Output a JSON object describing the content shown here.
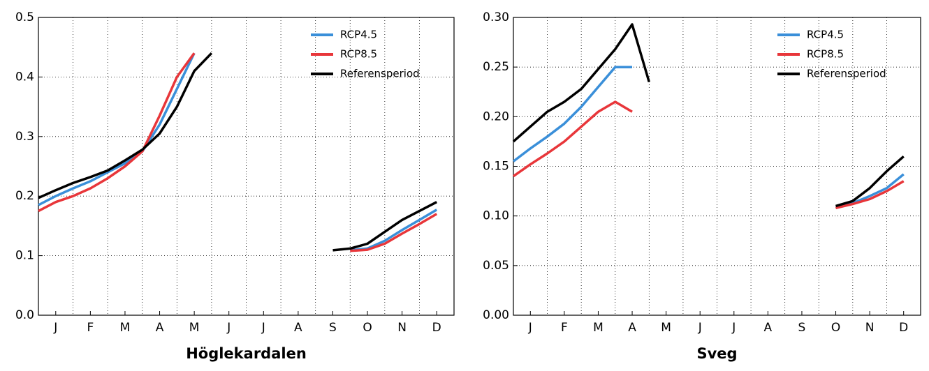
{
  "chart_data": [
    {
      "type": "line",
      "title": "Höglekardalen",
      "categories": [
        null,
        "J",
        null,
        "F",
        null,
        "M",
        null,
        "A",
        null,
        "M",
        null,
        "J",
        null,
        "J",
        null,
        "A",
        null,
        "S",
        null,
        "O",
        null,
        "N",
        null,
        "D"
      ],
      "ylim": [
        0,
        0.5
      ],
      "yticks": [
        {
          "value": 0,
          "label": "0.0"
        },
        0.1,
        0.2,
        0.3,
        0.4,
        0.5
      ],
      "grid": true,
      "legend": "upper right",
      "series": [
        {
          "name": "RCP4.5",
          "color": "#3a8fd9",
          "values": [
            0.185,
            0.2,
            0.213,
            0.225,
            0.24,
            0.255,
            0.275,
            0.32,
            0.38,
            0.44,
            null,
            null,
            null,
            null,
            null,
            null,
            null,
            null,
            0.109,
            0.112,
            0.125,
            0.143,
            0.16,
            0.177
          ]
        },
        {
          "name": "RCP8.5",
          "color": "#e8363a",
          "values": [
            0.175,
            0.19,
            0.2,
            0.213,
            0.23,
            0.25,
            0.275,
            0.335,
            0.4,
            0.44,
            null,
            null,
            null,
            null,
            null,
            null,
            null,
            null,
            0.108,
            0.11,
            0.12,
            0.137,
            0.153,
            0.17
          ]
        },
        {
          "name": "Referensperiod",
          "color": "#000000",
          "values": [
            0.197,
            0.21,
            0.222,
            0.232,
            0.243,
            0.26,
            0.278,
            0.305,
            0.35,
            0.41,
            0.44,
            null,
            null,
            null,
            null,
            null,
            null,
            0.109,
            0.112,
            0.12,
            0.14,
            0.16,
            0.175,
            0.19
          ]
        }
      ]
    },
    {
      "type": "line",
      "title": "Sveg",
      "categories": [
        null,
        "J",
        null,
        "F",
        null,
        "M",
        null,
        "A",
        null,
        "M",
        null,
        "J",
        null,
        "J",
        null,
        "A",
        null,
        "S",
        null,
        "O",
        null,
        "N",
        null,
        "D"
      ],
      "ylim": [
        0,
        0.3
      ],
      "yticks": [
        {
          "value": 0,
          "label": "0.00"
        },
        {
          "value": 0.05,
          "label": "0.05"
        },
        {
          "value": 0.1,
          "label": "0.10"
        },
        {
          "value": 0.15,
          "label": "0.15"
        },
        {
          "value": 0.2,
          "label": "0.20"
        },
        {
          "value": 0.25,
          "label": "0.25"
        },
        {
          "value": 0.3,
          "label": "0.30"
        }
      ],
      "grid": true,
      "legend": "upper right",
      "series": [
        {
          "name": "RCP4.5",
          "color": "#3a8fd9",
          "values": [
            0.155,
            0.168,
            0.18,
            0.193,
            0.21,
            0.23,
            0.25,
            0.25,
            null,
            null,
            null,
            null,
            null,
            null,
            null,
            null,
            null,
            null,
            null,
            0.108,
            0.113,
            0.12,
            0.128,
            0.142
          ]
        },
        {
          "name": "RCP8.5",
          "color": "#e8363a",
          "values": [
            0.14,
            0.152,
            0.163,
            0.175,
            0.19,
            0.205,
            0.215,
            0.205,
            null,
            null,
            null,
            null,
            null,
            null,
            null,
            null,
            null,
            null,
            null,
            0.108,
            0.112,
            0.117,
            0.125,
            0.135
          ]
        },
        {
          "name": "Referensperiod",
          "color": "#000000",
          "values": [
            0.175,
            0.19,
            0.205,
            0.215,
            0.228,
            0.248,
            0.268,
            0.293,
            0.235,
            null,
            null,
            null,
            null,
            null,
            null,
            null,
            null,
            null,
            null,
            0.11,
            0.115,
            0.128,
            0.145,
            0.16
          ]
        }
      ]
    }
  ]
}
